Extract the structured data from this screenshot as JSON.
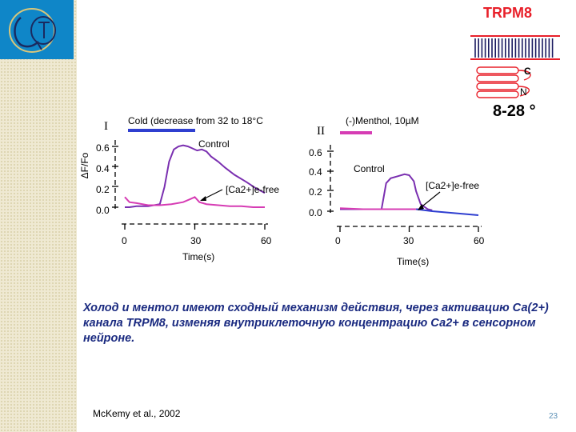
{
  "slide": {
    "header": "TRPM8",
    "channel_labels": {
      "c_term": "C",
      "n_term": "N"
    },
    "temperature_range": "8-28 °",
    "caption": "Холод и ментол имеют сходный механизм действия, через активацию Са(2+) канала TRPM8, изменяя внутриклеточную концентрацию Са2+ в сенсорном нейроне.",
    "citation": "McKemy et al., 2002",
    "page_number": "23",
    "colors": {
      "logo_bg": "#0f86c8",
      "header": "#e8202a",
      "caption": "#1a2a80",
      "control": "#7a2fb0",
      "ca_free": "#d63cb4",
      "blue_line": "#2f3fd0"
    }
  },
  "chart_data": [
    {
      "type": "line",
      "panel_label": "I",
      "stimulus_label": "Cold (decrease from 32 to 18°C",
      "stimulus_bar_color": "#2f3fd0",
      "ylabel": "ΔF/Fo",
      "xlabel": "Time(s)",
      "yticks": [
        "0.0",
        "0.2",
        "0.4",
        "0.6"
      ],
      "xticks": [
        "0",
        "30",
        "60"
      ],
      "xlim": [
        0,
        60
      ],
      "ylim": [
        0,
        0.65
      ],
      "series": [
        {
          "name": "Control",
          "color": "#7a2fb0",
          "x": [
            0,
            2,
            5,
            10,
            15,
            17,
            19,
            21,
            23,
            25,
            27,
            29,
            31,
            33,
            35,
            37,
            40,
            43,
            47,
            52,
            56,
            60
          ],
          "y": [
            0.0,
            0.0,
            0.01,
            0.01,
            0.03,
            0.2,
            0.45,
            0.57,
            0.6,
            0.61,
            0.6,
            0.58,
            0.56,
            0.57,
            0.55,
            0.5,
            0.45,
            0.39,
            0.32,
            0.25,
            0.19,
            0.14
          ]
        },
        {
          "name": "[Ca2+]e-free",
          "color": "#d63cb4",
          "x": [
            0,
            2,
            5,
            10,
            15,
            20,
            25,
            28,
            30,
            32,
            35,
            40,
            45,
            50,
            55,
            60
          ],
          "y": [
            0.1,
            0.05,
            0.04,
            0.02,
            0.02,
            0.03,
            0.05,
            0.08,
            0.1,
            0.05,
            0.03,
            0.02,
            0.01,
            0.01,
            0.0,
            0.0
          ]
        }
      ]
    },
    {
      "type": "line",
      "panel_label": "II",
      "stimulus_label": "(-)Menthol, 10µM",
      "stimulus_bar_color": "#d63cb4",
      "ylabel": "",
      "xlabel": "Time(s)",
      "yticks": [
        "0.0",
        "0.2",
        "0.4",
        "0.6"
      ],
      "xticks": [
        "0",
        "30",
        "60"
      ],
      "xlim": [
        0,
        60
      ],
      "ylim": [
        0,
        0.65
      ],
      "series": [
        {
          "name": "Control",
          "color": "#7a2fb0",
          "x": [
            0,
            3,
            6,
            10,
            15,
            18,
            19,
            20,
            22,
            25,
            28,
            30,
            32,
            33,
            35,
            38,
            40
          ],
          "y": [
            0.02,
            0.02,
            0.02,
            0.02,
            0.02,
            0.02,
            0.15,
            0.28,
            0.33,
            0.35,
            0.37,
            0.36,
            0.3,
            0.2,
            0.07,
            0.02,
            0.01
          ]
        },
        {
          "name": "[Ca2+]e-free",
          "color": "#d63cb4",
          "x": [
            0,
            10,
            20,
            30,
            33,
            36
          ],
          "y": [
            0.03,
            0.02,
            0.02,
            0.02,
            0.02,
            0.02
          ]
        },
        {
          "name": "",
          "color": "#2f3fd0",
          "x": [
            33,
            40,
            45,
            50,
            55,
            60
          ],
          "y": [
            0.02,
            0.0,
            -0.01,
            -0.02,
            -0.03,
            -0.04
          ]
        }
      ]
    }
  ]
}
